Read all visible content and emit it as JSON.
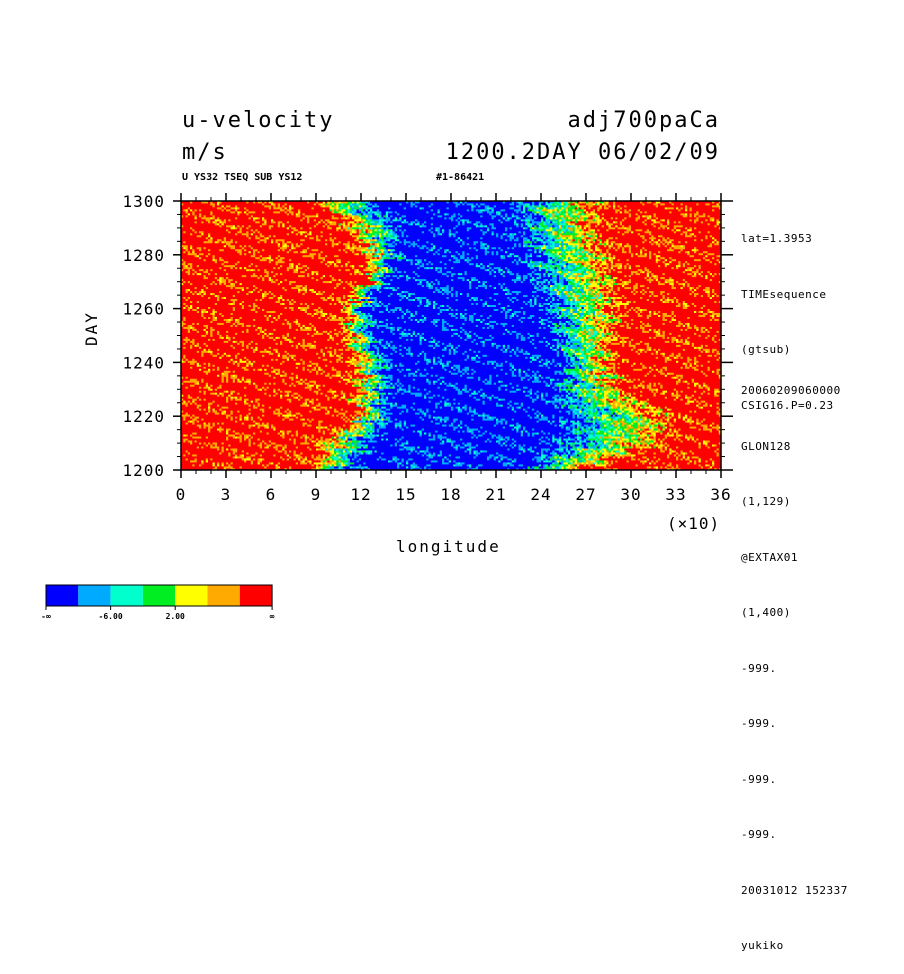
{
  "header": {
    "variable": "u-velocity",
    "experiment": "adj700paCa",
    "units": "m/s",
    "time": "1200.2DAY 06/02/09",
    "info_left": "U YS32 TSEQ SUB YS12",
    "info_right": "#1-86421"
  },
  "side_info": {
    "top": [
      "lat=1.3953",
      "TIMEsequence",
      "(gtsub)",
      "CSIG16.P=0.23"
    ],
    "bottom": [
      "20060209060000",
      "GLON128",
      "(1,129)",
      "@EXTAX01",
      "(1,400)",
      "-999.",
      "-999.",
      "-999.",
      "-999.",
      "20031012 152337",
      "yukiko"
    ]
  },
  "colors": {
    "levels": [
      "#0000ff",
      "#00aaff",
      "#00ffcc",
      "#00ee22",
      "#ffff00",
      "#ffaa00",
      "#ff0000"
    ]
  },
  "colorbar": {
    "labels": [
      "-∞",
      "-6.00",
      "2.00",
      "∞"
    ]
  },
  "chart_data": {
    "type": "heatmap",
    "title": "u-velocity",
    "xlabel": "longitude",
    "ylabel": "DAY",
    "x_multiplier": "(×10)",
    "xlim": [
      0,
      36
    ],
    "ylim": [
      1200,
      1300
    ],
    "x_ticks": [
      "0",
      "3",
      "6",
      "9",
      "12",
      "15",
      "18",
      "21",
      "24",
      "27",
      "30",
      "33",
      "36"
    ],
    "y_ticks": [
      "1200",
      "1220",
      "1240",
      "1260",
      "1280",
      "1300"
    ],
    "x_tick_values": [
      0,
      3,
      6,
      9,
      12,
      15,
      18,
      21,
      24,
      27,
      30,
      33,
      36
    ],
    "y_tick_values": [
      1200,
      1220,
      1240,
      1260,
      1280,
      1300
    ],
    "region_boundaries": [
      {
        "day": 1200,
        "red_end": 8.5,
        "blue_start": 11.5,
        "blue_end": 22.5,
        "red_start": 27.5
      },
      {
        "day": 1210,
        "red_end": 9,
        "blue_start": 13,
        "blue_end": 24.5,
        "red_start": 33
      },
      {
        "day": 1220,
        "red_end": 11,
        "blue_start": 14,
        "blue_end": 25,
        "red_start": 33.5
      },
      {
        "day": 1230,
        "red_end": 11.5,
        "blue_start": 14,
        "blue_end": 24.5,
        "red_start": 30
      },
      {
        "day": 1240,
        "red_end": 11,
        "blue_start": 14,
        "blue_end": 25,
        "red_start": 29
      },
      {
        "day": 1250,
        "red_end": 10.5,
        "blue_start": 13,
        "blue_end": 24,
        "red_start": 29.5
      },
      {
        "day": 1260,
        "red_end": 10.5,
        "blue_start": 12.5,
        "blue_end": 24,
        "red_start": 30
      },
      {
        "day": 1270,
        "red_end": 12,
        "blue_start": 14,
        "blue_end": 23,
        "red_start": 30
      },
      {
        "day": 1280,
        "red_end": 12,
        "blue_start": 14.5,
        "blue_end": 22.5,
        "red_start": 29.5
      },
      {
        "day": 1290,
        "red_end": 10.5,
        "blue_start": 15,
        "blue_end": 22,
        "red_start": 28.5
      },
      {
        "day": 1300,
        "red_end": 8.5,
        "blue_start": 13,
        "blue_end": 21.5,
        "red_start": 29
      }
    ]
  }
}
